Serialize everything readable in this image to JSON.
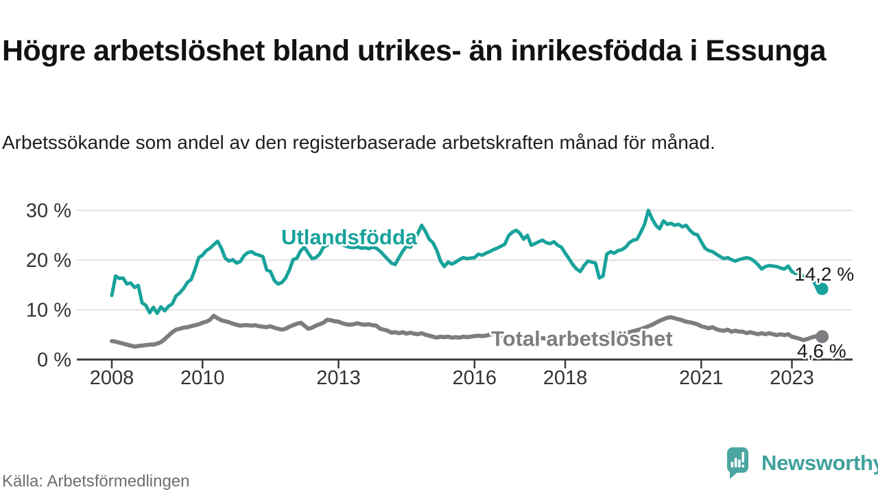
{
  "header": {
    "title": "Högre arbetslöshet bland utrikes- än inrikesfödda i Essunga",
    "subtitle": "Arbetssökande som andel av den registerbaserade arbetskraften månad för månad."
  },
  "footer": {
    "source": "Källa: Arbetsförmedlingen",
    "brand": "Newsworthy"
  },
  "colors": {
    "foreign_line": "#18a29b",
    "total_line": "#7d7d81",
    "grid": "#d8d8d8",
    "axis": "#3c3c3c",
    "tick_text": "#333333",
    "value_text": "#1a1a1a",
    "logo_teal": "#4ba6a1",
    "brand_text": "#3fa19b",
    "source_text": "#6e6e6e"
  },
  "chart_data": {
    "type": "line",
    "title": "Högre arbetslöshet bland utrikes- än inrikesfödda i Essunga",
    "subtitle": "Arbetssökande som andel av den registerbaserade arbetskraften månad för månad.",
    "unit": "percent",
    "x_frequency": "monthly",
    "x_start": "2008-01",
    "x_end": "2023-09",
    "ylim": [
      0,
      31
    ],
    "grid": "horizontal",
    "legend_position": "inline-labels",
    "yticks": [
      {
        "value": 0,
        "label": "0 %"
      },
      {
        "value": 10,
        "label": "10 %"
      },
      {
        "value": 20,
        "label": "20 %"
      },
      {
        "value": 30,
        "label": "30 %"
      }
    ],
    "xticks": [
      {
        "year": 2008,
        "label": "2008"
      },
      {
        "year": 2010,
        "label": "2010"
      },
      {
        "year": 2013,
        "label": "2013"
      },
      {
        "year": 2016,
        "label": "2016"
      },
      {
        "year": 2018,
        "label": "2018"
      },
      {
        "year": 2021,
        "label": "2021"
      },
      {
        "year": 2023,
        "label": "2023"
      }
    ],
    "series": [
      {
        "name": "Utlandsfödda",
        "color": "#18a29b",
        "end_value_label": "14,2 %",
        "last_value": 14.2,
        "values": [
          12.9,
          16.8,
          16.3,
          16.4,
          15.2,
          15.4,
          14.5,
          14.9,
          11.4,
          10.9,
          9.4,
          10.5,
          9.3,
          10.6,
          9.8,
          10.7,
          11.2,
          12.8,
          13.4,
          14.3,
          15.5,
          16.1,
          18.1,
          20.5,
          21.0,
          21.9,
          22.4,
          23.1,
          23.8,
          22.4,
          20.4,
          19.8,
          20.1,
          19.4,
          19.7,
          20.9,
          21.5,
          21.7,
          21.2,
          21.0,
          20.7,
          18.0,
          17.7,
          15.9,
          15.2,
          15.5,
          16.4,
          18.0,
          20.1,
          20.4,
          21.9,
          22.6,
          21.4,
          20.3,
          20.5,
          21.2,
          22.6,
          23.0,
          23.3,
          23.6,
          23.4,
          23.1,
          22.8,
          22.6,
          22.5,
          22.7,
          22.4,
          22.5,
          22.3,
          22.6,
          22.4,
          21.8,
          21.0,
          20.2,
          19.4,
          19.1,
          20.5,
          21.8,
          22.8,
          22.6,
          23.6,
          25.4,
          27.0,
          25.8,
          24.2,
          23.5,
          22.0,
          19.8,
          18.7,
          19.6,
          19.2,
          19.6,
          20.1,
          20.5,
          20.3,
          20.4,
          20.5,
          21.2,
          21.0,
          21.4,
          21.7,
          22.1,
          22.4,
          22.8,
          23.2,
          24.9,
          25.6,
          26.0,
          25.4,
          24.2,
          25.0,
          23.0,
          23.3,
          23.7,
          24.0,
          23.5,
          23.3,
          23.7,
          23.0,
          22.6,
          21.4,
          20.3,
          19.1,
          18.2,
          17.7,
          18.9,
          19.8,
          19.6,
          19.4,
          16.4,
          16.8,
          21.2,
          21.7,
          21.4,
          21.9,
          22.1,
          22.6,
          23.5,
          24.0,
          24.2,
          25.6,
          27.2,
          30.0,
          28.3,
          27.0,
          26.3,
          27.9,
          27.2,
          27.4,
          27.0,
          27.2,
          26.7,
          27.0,
          26.0,
          25.3,
          25.1,
          23.7,
          22.4,
          21.9,
          21.7,
          21.2,
          20.7,
          20.3,
          20.5,
          20.1,
          19.8,
          20.1,
          20.3,
          20.5,
          20.3,
          19.8,
          19.1,
          18.2,
          18.7,
          18.9,
          18.8,
          18.7,
          18.4,
          18.2,
          18.8,
          17.7,
          17.3,
          17.5,
          16.6,
          16.8,
          16.4,
          15.4,
          13.8,
          14.2
        ]
      },
      {
        "name": "Total arbetslöshet",
        "color": "#7d7d81",
        "end_value_label": "4,6 %",
        "last_value": 4.6,
        "values": [
          3.7,
          3.6,
          3.4,
          3.2,
          3.0,
          2.8,
          2.6,
          2.7,
          2.8,
          2.9,
          3.0,
          3.0,
          3.2,
          3.5,
          4.1,
          4.8,
          5.5,
          6.0,
          6.2,
          6.4,
          6.5,
          6.7,
          6.9,
          7.1,
          7.4,
          7.6,
          8.0,
          8.8,
          8.3,
          7.9,
          7.7,
          7.5,
          7.2,
          7.0,
          6.8,
          6.9,
          6.9,
          6.8,
          6.9,
          6.7,
          6.6,
          6.5,
          6.7,
          6.4,
          6.2,
          6.0,
          6.2,
          6.6,
          6.9,
          7.2,
          7.4,
          6.8,
          6.2,
          6.4,
          6.8,
          7.1,
          7.4,
          8.0,
          7.9,
          7.7,
          7.6,
          7.3,
          7.1,
          7.0,
          7.1,
          7.3,
          7.1,
          7.0,
          7.1,
          6.9,
          6.8,
          6.2,
          6.0,
          5.8,
          5.4,
          5.5,
          5.3,
          5.5,
          5.2,
          5.4,
          5.2,
          5.1,
          5.3,
          5.0,
          4.8,
          4.6,
          4.4,
          4.6,
          4.5,
          4.6,
          4.4,
          4.5,
          4.4,
          4.6,
          4.5,
          4.6,
          4.7,
          4.8,
          4.7,
          4.8,
          5.0,
          5.2,
          4.9,
          4.7,
          4.6,
          4.5,
          4.5,
          4.4,
          4.4,
          4.3,
          4.2,
          4.2,
          4.1,
          4.2,
          4.3,
          4.2,
          4.3,
          4.4,
          4.4,
          4.5,
          4.5,
          4.4,
          4.4,
          4.3,
          4.4,
          4.5,
          4.6,
          4.5,
          4.6,
          4.7,
          4.8,
          4.9,
          5.0,
          5.1,
          5.2,
          5.3,
          5.4,
          5.5,
          5.7,
          5.9,
          6.1,
          6.4,
          6.7,
          7.0,
          7.4,
          7.8,
          8.1,
          8.4,
          8.5,
          8.3,
          8.1,
          7.9,
          7.6,
          7.5,
          7.3,
          7.1,
          6.7,
          6.5,
          6.3,
          6.5,
          6.1,
          5.9,
          5.8,
          6.0,
          5.6,
          5.8,
          5.6,
          5.6,
          5.3,
          5.5,
          5.3,
          5.1,
          5.3,
          5.1,
          5.3,
          5.1,
          4.9,
          5.1,
          4.9,
          5.1,
          4.6,
          4.4,
          4.2,
          3.9,
          4.1,
          4.4,
          4.6,
          4.8,
          4.6
        ]
      }
    ]
  }
}
